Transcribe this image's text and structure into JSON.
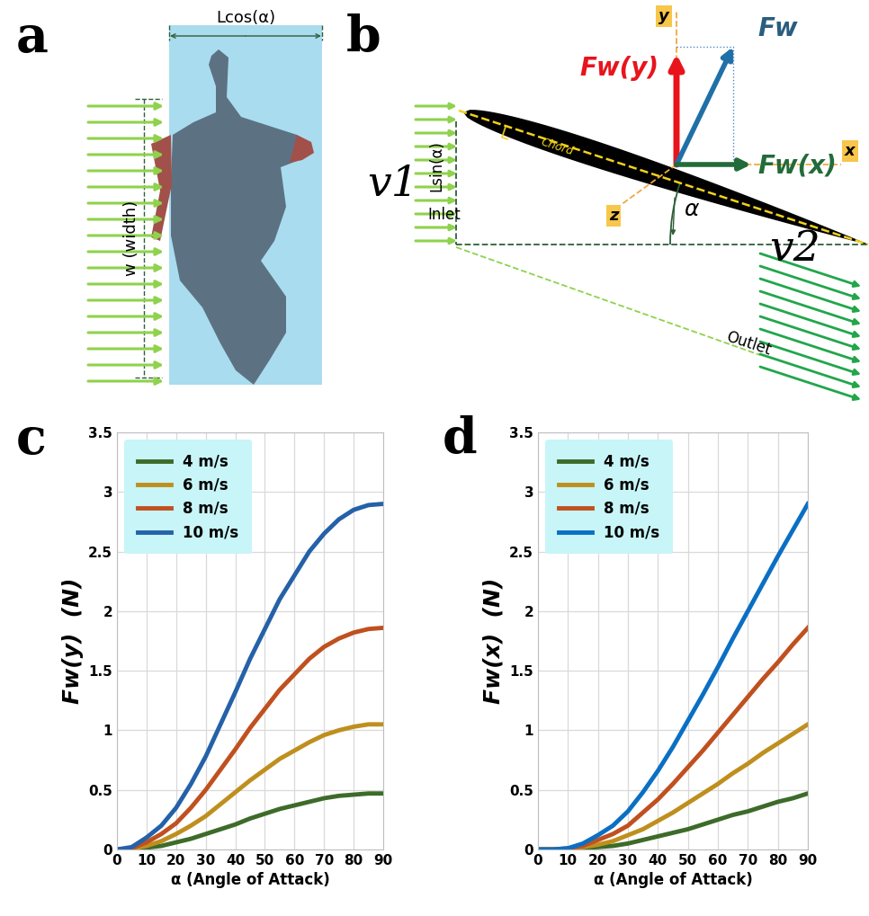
{
  "diagrams": {
    "a": {
      "panel_label": "a",
      "width_label": "Lcos(α)",
      "height_label": "w (width)"
    },
    "b": {
      "panel_label": "b",
      "inlet_velocity": "v1",
      "outlet_velocity": "v2",
      "chord_length": "L",
      "chord": "Chord",
      "height_label": "Lsin(α)",
      "inlet": "Inlet",
      "outlet": "Outlet",
      "angle": "α",
      "force": "Fw",
      "force_y": "Fw(y)",
      "force_x": "Fw(x)",
      "axis_x": "x",
      "axis_y": "y",
      "axis_z": "z"
    }
  },
  "chart_data": [
    {
      "panel_label": "c",
      "type": "line",
      "x_label": "α (Angle of Attack)",
      "y_label": "Fw(y)  (N)",
      "x": [
        0,
        5,
        10,
        15,
        20,
        25,
        30,
        35,
        40,
        45,
        50,
        55,
        60,
        65,
        70,
        75,
        80,
        85,
        90
      ],
      "series": [
        {
          "name": "4 m/s",
          "color": "#3d6b29",
          "values": [
            0,
            0.003,
            0.015,
            0.03,
            0.06,
            0.09,
            0.13,
            0.17,
            0.21,
            0.26,
            0.3,
            0.34,
            0.37,
            0.4,
            0.43,
            0.45,
            0.46,
            0.47,
            0.47
          ]
        },
        {
          "name": "6 m/s",
          "color": "#bf8f1e",
          "values": [
            0,
            0.005,
            0.03,
            0.07,
            0.13,
            0.2,
            0.28,
            0.38,
            0.48,
            0.58,
            0.67,
            0.76,
            0.83,
            0.9,
            0.96,
            1.0,
            1.03,
            1.05,
            1.05
          ]
        },
        {
          "name": "8 m/s",
          "color": "#c0501f",
          "values": [
            0,
            0.01,
            0.06,
            0.13,
            0.22,
            0.35,
            0.5,
            0.67,
            0.84,
            1.02,
            1.18,
            1.34,
            1.47,
            1.6,
            1.7,
            1.77,
            1.82,
            1.85,
            1.86
          ]
        },
        {
          "name": "10 m/s",
          "color": "#2461a8",
          "values": [
            0,
            0.02,
            0.1,
            0.2,
            0.35,
            0.55,
            0.78,
            1.05,
            1.32,
            1.6,
            1.85,
            2.1,
            2.3,
            2.5,
            2.65,
            2.77,
            2.85,
            2.89,
            2.9
          ]
        }
      ],
      "xlim": [
        0,
        90
      ],
      "xticks": [
        0,
        10,
        20,
        30,
        40,
        50,
        60,
        70,
        80,
        90
      ],
      "ylim": [
        0,
        3.5
      ],
      "yticks": [
        0,
        0.5,
        1,
        1.5,
        2,
        2.5,
        3,
        3.5
      ],
      "grid": true,
      "legend": "upper left"
    },
    {
      "panel_label": "d",
      "type": "line",
      "x_label": "α (Angle of Attack)",
      "y_label": "Fw(x)  (N)",
      "x": [
        0,
        5,
        10,
        15,
        20,
        25,
        30,
        35,
        40,
        45,
        50,
        55,
        60,
        65,
        70,
        75,
        80,
        85,
        90
      ],
      "series": [
        {
          "name": "4 m/s",
          "color": "#3d6b29",
          "values": [
            0,
            0,
            0,
            0.01,
            0.02,
            0.03,
            0.05,
            0.08,
            0.11,
            0.14,
            0.17,
            0.21,
            0.25,
            0.29,
            0.32,
            0.36,
            0.4,
            0.43,
            0.47
          ]
        },
        {
          "name": "6 m/s",
          "color": "#bf8f1e",
          "values": [
            0,
            0,
            0,
            0.02,
            0.04,
            0.07,
            0.12,
            0.17,
            0.24,
            0.31,
            0.39,
            0.47,
            0.55,
            0.64,
            0.72,
            0.81,
            0.89,
            0.97,
            1.05
          ]
        },
        {
          "name": "8 m/s",
          "color": "#c0501f",
          "values": [
            0,
            0,
            0.01,
            0.03,
            0.08,
            0.13,
            0.2,
            0.31,
            0.42,
            0.55,
            0.69,
            0.83,
            0.98,
            1.13,
            1.28,
            1.43,
            1.57,
            1.72,
            1.86
          ]
        },
        {
          "name": "10 m/s",
          "color": "#0a6fc4",
          "values": [
            0,
            0,
            0.01,
            0.05,
            0.12,
            0.2,
            0.32,
            0.48,
            0.66,
            0.86,
            1.08,
            1.3,
            1.53,
            1.77,
            2.0,
            2.23,
            2.46,
            2.68,
            2.9
          ]
        }
      ],
      "xlim": [
        0,
        90
      ],
      "xticks": [
        0,
        10,
        20,
        30,
        40,
        50,
        60,
        70,
        80,
        90
      ],
      "ylim": [
        0,
        3.5
      ],
      "yticks": [
        0,
        0.5,
        1,
        1.5,
        2,
        2.5,
        3,
        3.5
      ],
      "grid": true,
      "legend": "upper left"
    }
  ]
}
